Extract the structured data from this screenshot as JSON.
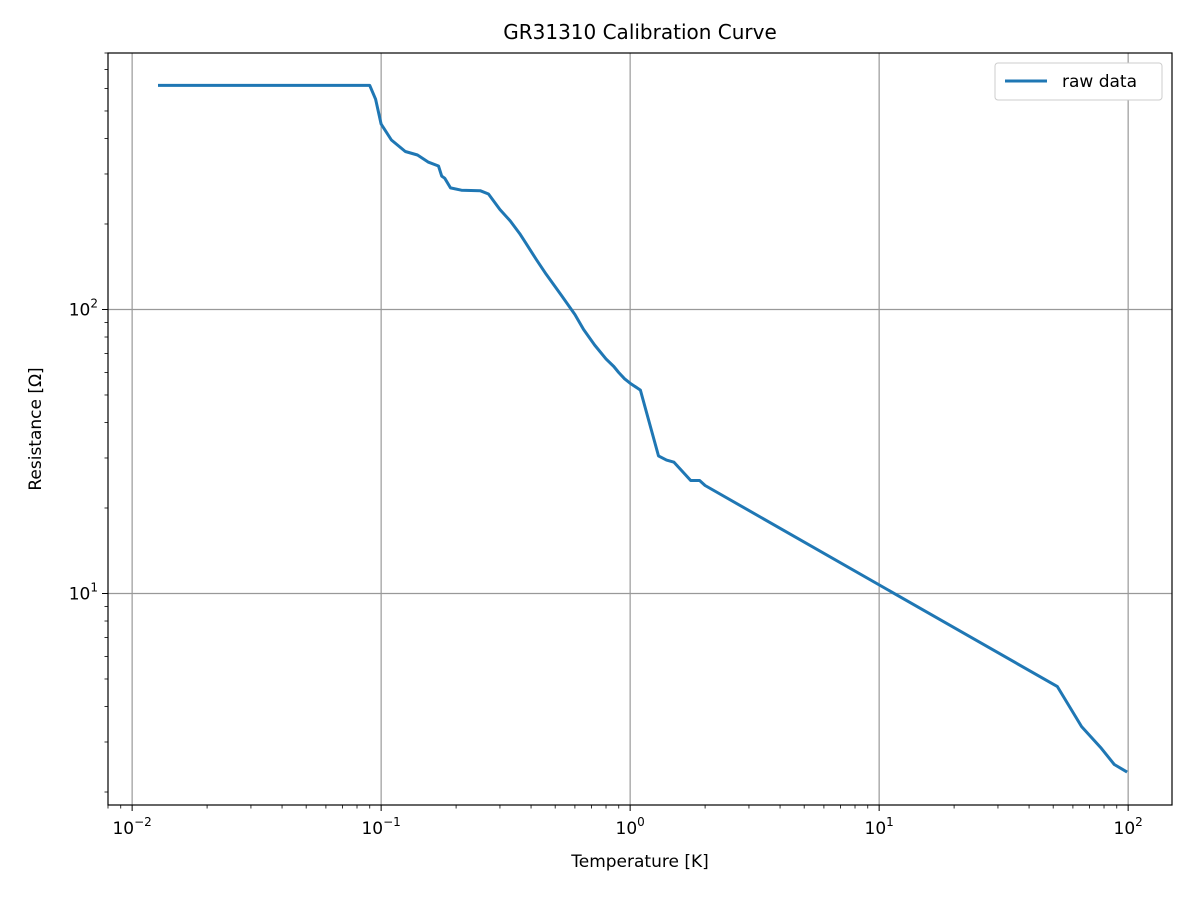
{
  "chart_data": {
    "type": "line",
    "title": "GR31310 Calibration Curve",
    "xlabel": "Temperature [K]",
    "ylabel": "Resistance [Ω]",
    "xscale": "log",
    "yscale": "log",
    "xlim": [
      0.008,
      150
    ],
    "ylim": [
      1.8,
      800
    ],
    "grid": true,
    "legend_position": "top-right",
    "x_ticks": [
      {
        "value": 0.01,
        "base": "10",
        "exp": "−2"
      },
      {
        "value": 0.1,
        "base": "10",
        "exp": "−1"
      },
      {
        "value": 1,
        "base": "10",
        "exp": "0"
      },
      {
        "value": 10,
        "base": "10",
        "exp": "1"
      },
      {
        "value": 100,
        "base": "10",
        "exp": "2"
      }
    ],
    "y_ticks": [
      {
        "value": 10,
        "base": "10",
        "exp": "1"
      },
      {
        "value": 100,
        "base": "10",
        "exp": "2"
      }
    ],
    "series": [
      {
        "name": "raw data",
        "color": "#1f77b4",
        "x": [
          0.0127,
          0.09,
          0.095,
          0.1,
          0.11,
          0.125,
          0.14,
          0.155,
          0.17,
          0.175,
          0.18,
          0.19,
          0.21,
          0.25,
          0.27,
          0.3,
          0.33,
          0.36,
          0.38,
          0.42,
          0.46,
          0.53,
          0.6,
          0.65,
          0.72,
          0.8,
          0.86,
          0.9,
          0.95,
          1.0,
          1.1,
          1.15,
          1.3,
          1.4,
          1.5,
          1.75,
          1.9,
          2.0,
          52.0,
          65.0,
          78.0,
          88.0,
          99.0
        ],
        "y": [
          615,
          615,
          550,
          450,
          395,
          360,
          350,
          330,
          320,
          295,
          290,
          268,
          263,
          262,
          255,
          225,
          205,
          185,
          172,
          150,
          133,
          112,
          96,
          85,
          75,
          67,
          63,
          60,
          57,
          55,
          52,
          45,
          30.5,
          29.5,
          29,
          25,
          25,
          24,
          4.7,
          3.4,
          2.85,
          2.5,
          2.35
        ]
      }
    ]
  }
}
